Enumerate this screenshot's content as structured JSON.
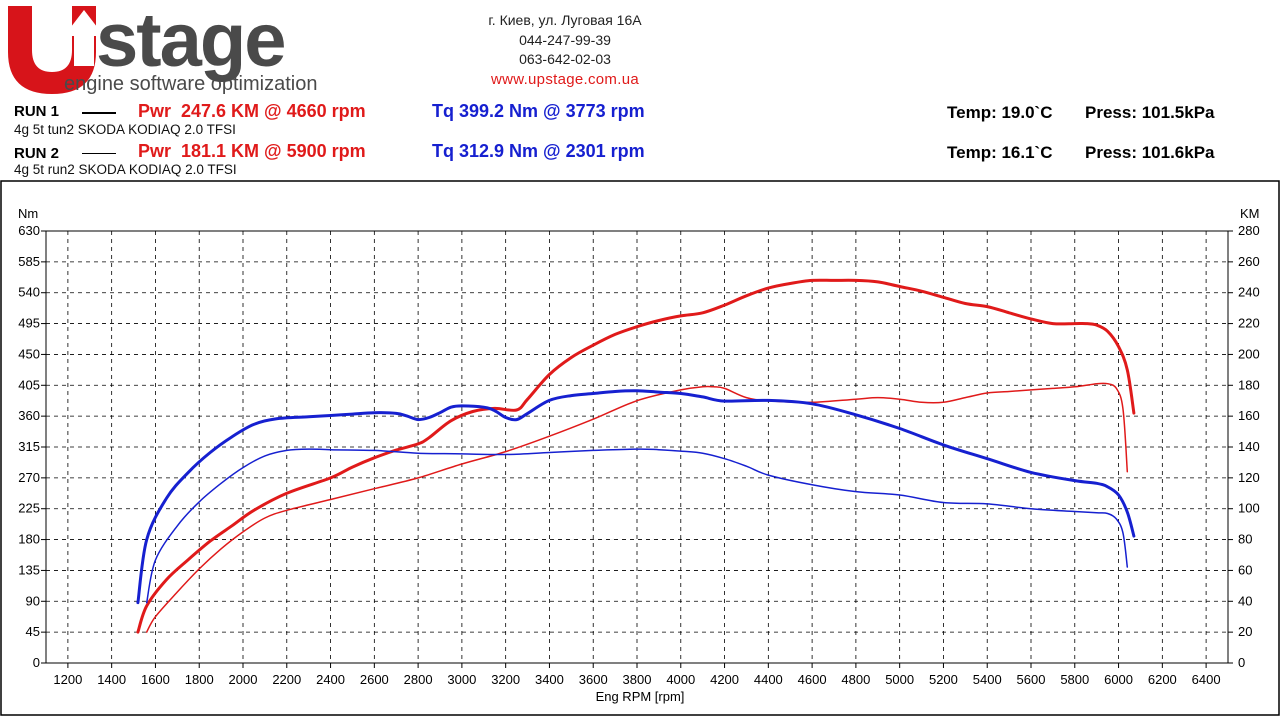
{
  "header": {
    "brand": "stage",
    "logo_letter": "U",
    "tagline": "engine software optimization",
    "address": "г. Киев, ул. Луговая 16А",
    "phone1": "044-247-99-39",
    "phone2": "063-642-02-03",
    "website": "www.upstage.com.ua"
  },
  "runs": [
    {
      "label": "RUN 1",
      "description": "4g 5t tun2 SKODA KODIAQ 2.0 TFSI",
      "pwr": "Pwr  247.6 KM @ 4660 rpm",
      "tq": "Tq 399.2 Nm @ 3773 rpm",
      "temp": "Temp: 19.0`C",
      "press": "Press: 101.5kPa"
    },
    {
      "label": "RUN 2",
      "description": "4g 5t run2 SKODA KODIAQ 2.0 TFSI",
      "pwr": "Pwr  181.1 KM @ 5900 rpm",
      "tq": "Tq 312.9 Nm @ 2301 rpm",
      "temp": "Temp: 16.1`C",
      "press": "Press: 101.6kPa"
    }
  ],
  "colors": {
    "power": "#e01a1a",
    "torque": "#1620d0",
    "grid": "#000000",
    "logo_red": "#d7141a",
    "logo_gray": "#4a4a4a"
  },
  "chart_data": {
    "type": "line",
    "xlabel": "Eng RPM [rpm]",
    "ylabel_left": "Nm",
    "ylabel_right": "KM",
    "xlim": [
      1100,
      6500
    ],
    "ylim_left": [
      0,
      630
    ],
    "ylim_right": [
      0,
      280
    ],
    "x_ticks": [
      1200,
      1400,
      1600,
      1800,
      2000,
      2200,
      2400,
      2600,
      2800,
      3000,
      3200,
      3400,
      3600,
      3800,
      4000,
      4200,
      4400,
      4600,
      4800,
      5000,
      5200,
      5400,
      5600,
      5800,
      6000,
      6200,
      6400
    ],
    "y_left_ticks": [
      0,
      45,
      90,
      135,
      180,
      225,
      270,
      315,
      360,
      405,
      450,
      495,
      540,
      585,
      630
    ],
    "y_right_ticks": [
      0,
      20,
      40,
      60,
      80,
      100,
      120,
      140,
      160,
      180,
      200,
      220,
      240,
      260,
      280
    ],
    "grid": true,
    "series": [
      {
        "name": "RUN 1 Power",
        "axis": "right",
        "color": "#e01a1a",
        "width": 3,
        "x": [
          1520,
          1560,
          1650,
          1750,
          1850,
          1950,
          2050,
          2200,
          2400,
          2500,
          2600,
          2700,
          2800,
          2850,
          2950,
          3050,
          3150,
          3250,
          3300,
          3400,
          3500,
          3600,
          3700,
          3800,
          3900,
          4000,
          4100,
          4200,
          4300,
          4400,
          4500,
          4600,
          4700,
          4800,
          4900,
          5000,
          5100,
          5200,
          5300,
          5400,
          5500,
          5600,
          5700,
          5800,
          5850,
          5900,
          5950,
          6000,
          6040,
          6070
        ],
        "y": [
          20,
          37,
          54,
          67,
          79,
          89,
          99,
          110,
          120,
          127,
          133,
          138,
          142,
          146,
          157,
          163,
          165,
          164,
          171,
          187,
          198,
          206,
          213,
          218,
          222,
          225,
          227,
          232,
          238,
          243,
          246,
          248,
          248,
          248,
          247,
          244,
          241,
          237,
          233,
          231,
          227,
          223,
          220,
          220,
          220,
          219,
          215,
          205,
          190,
          162
        ]
      },
      {
        "name": "RUN 2 Power",
        "axis": "right",
        "color": "#e01a1a",
        "width": 1.5,
        "x": [
          1560,
          1600,
          1700,
          1800,
          1900,
          2000,
          2100,
          2200,
          2400,
          2600,
          2800,
          3000,
          3200,
          3400,
          3600,
          3800,
          4000,
          4100,
          4150,
          4200,
          4300,
          4400,
          4600,
          4800,
          4900,
          5000,
          5100,
          5200,
          5300,
          5400,
          5500,
          5600,
          5700,
          5800,
          5900,
          5950,
          5990,
          6020,
          6040
        ],
        "y": [
          20,
          30,
          46,
          61,
          74,
          85,
          94,
          99,
          106,
          113,
          120,
          129,
          137,
          147,
          158,
          170,
          177,
          179,
          179,
          178,
          172,
          170,
          169,
          171,
          172,
          171,
          169,
          169,
          172,
          175,
          176,
          177,
          178,
          179,
          181,
          181,
          178,
          165,
          124
        ]
      },
      {
        "name": "RUN 1 Torque",
        "axis": "left",
        "color": "#1620d0",
        "width": 3,
        "x": [
          1520,
          1560,
          1650,
          1750,
          1850,
          1950,
          2050,
          2150,
          2300,
          2400,
          2500,
          2600,
          2700,
          2750,
          2800,
          2850,
          2900,
          2950,
          3000,
          3100,
          3150,
          3200,
          3250,
          3300,
          3400,
          3500,
          3600,
          3700,
          3800,
          3900,
          4000,
          4100,
          4200,
          4400,
          4600,
          4800,
          5000,
          5200,
          5400,
          5600,
          5800,
          5900,
          5950,
          6000,
          6040,
          6070
        ],
        "y": [
          88,
          180,
          240,
          278,
          307,
          330,
          348,
          356,
          359,
          361,
          363,
          365,
          364,
          360,
          355,
          358,
          365,
          373,
          375,
          373,
          368,
          358,
          355,
          364,
          383,
          390,
          393,
          396,
          397,
          395,
          393,
          388,
          382,
          383,
          378,
          362,
          342,
          318,
          298,
          278,
          266,
          262,
          257,
          245,
          220,
          185
        ]
      },
      {
        "name": "RUN 2 Torque",
        "axis": "left",
        "color": "#1620d0",
        "width": 1.5,
        "x": [
          1560,
          1600,
          1700,
          1800,
          1900,
          2000,
          2100,
          2200,
          2300,
          2400,
          2600,
          2800,
          3000,
          3200,
          3400,
          3600,
          3800,
          3900,
          4000,
          4100,
          4200,
          4300,
          4400,
          4600,
          4800,
          5000,
          5200,
          5400,
          5600,
          5800,
          5900,
          5950,
          5990,
          6020,
          6040
        ],
        "y": [
          88,
          150,
          200,
          235,
          262,
          285,
          302,
          310,
          312,
          311,
          310,
          306,
          305,
          304,
          307,
          310,
          312,
          311,
          309,
          306,
          298,
          287,
          274,
          260,
          250,
          245,
          234,
          232,
          225,
          221,
          219,
          218,
          210,
          190,
          140
        ]
      }
    ]
  }
}
